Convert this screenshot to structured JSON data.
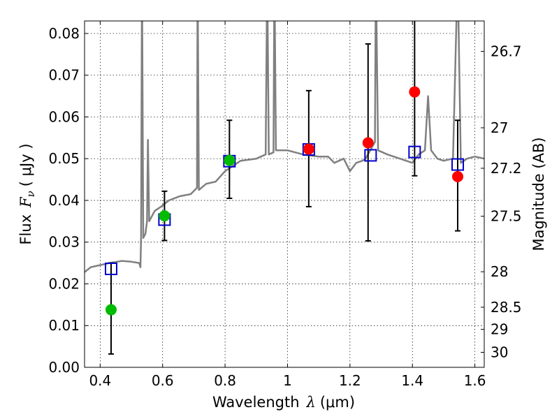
{
  "chart_data": {
    "type": "scatter",
    "xlabel": {
      "text": "Wavelength",
      "symbol": "λ",
      "unit": "(μm)"
    },
    "ylabel": {
      "text": "Flux",
      "symbol": "F",
      "subscript": "ν",
      "unit": "( μJy )"
    },
    "y2label": "Magnitude (AB)",
    "xlim": [
      0.35,
      1.63
    ],
    "ylim": [
      0.0,
      0.083
    ],
    "grid": true,
    "x_ticks": [
      0.4,
      0.6,
      0.8,
      1.0,
      1.2,
      1.4,
      1.6
    ],
    "x_tick_labels": [
      "0.4",
      "0.6",
      "0.8",
      "1",
      "1.2",
      "1.4",
      "1.6"
    ],
    "y_ticks": [
      0.0,
      0.01,
      0.02,
      0.03,
      0.04,
      0.05,
      0.06,
      0.07,
      0.08
    ],
    "y_tick_labels": [
      "0.00",
      "0.01",
      "0.02",
      "0.03",
      "0.04",
      "0.05",
      "0.06",
      "0.07",
      "0.08"
    ],
    "y2_ticks": [
      {
        "label": "26.7",
        "flux": 0.0757
      },
      {
        "label": "27",
        "flux": 0.0574
      },
      {
        "label": "27.2",
        "flux": 0.0477
      },
      {
        "label": "27.5",
        "flux": 0.0362
      },
      {
        "label": "28",
        "flux": 0.0229
      },
      {
        "label": "28.5",
        "flux": 0.0144
      },
      {
        "label": "29",
        "flux": 0.0091
      },
      {
        "label": "30",
        "flux": 0.0036
      }
    ],
    "series": [
      {
        "marker": "circle-filled",
        "color": "#00bb00",
        "points": [
          {
            "x": 0.435,
            "y": 0.0138,
            "err_low": 0.0106,
            "err_high": 0.0112
          },
          {
            "x": 0.606,
            "y": 0.0363,
            "err_low": 0.0059,
            "err_high": 0.0059
          },
          {
            "x": 0.814,
            "y": 0.0496,
            "err_low": 0.0091,
            "err_high": 0.0096
          }
        ]
      },
      {
        "marker": "circle-filled",
        "color": "#ff0000",
        "points": [
          {
            "x": 1.068,
            "y": 0.0523,
            "err_low": 0.0138,
            "err_high": 0.014
          },
          {
            "x": 1.258,
            "y": 0.0538,
            "err_low": 0.0235,
            "err_high": 0.0237
          },
          {
            "x": 1.407,
            "y": 0.066,
            "err_low": 0.0201,
            "err_high": 0.0175
          },
          {
            "x": 1.545,
            "y": 0.0457,
            "err_low": 0.013,
            "err_high": 0.0135
          }
        ]
      },
      {
        "marker": "square-open",
        "color": "#0000cc",
        "points": [
          {
            "x": 0.435,
            "y": 0.0236
          },
          {
            "x": 0.606,
            "y": 0.0354
          },
          {
            "x": 0.814,
            "y": 0.0494
          },
          {
            "x": 1.068,
            "y": 0.0522
          },
          {
            "x": 1.266,
            "y": 0.0508
          },
          {
            "x": 1.407,
            "y": 0.0516
          },
          {
            "x": 1.545,
            "y": 0.0486
          }
        ]
      },
      {
        "marker": "line",
        "color": "#808080",
        "points": [
          [
            0.35,
            0.0228
          ],
          [
            0.37,
            0.024
          ],
          [
            0.4,
            0.0245
          ],
          [
            0.43,
            0.025
          ],
          [
            0.47,
            0.0255
          ],
          [
            0.5,
            0.0253
          ],
          [
            0.525,
            0.025
          ],
          [
            0.529,
            0.024
          ],
          [
            0.531,
            0.031
          ],
          [
            0.534,
            0.095
          ],
          [
            0.538,
            0.031
          ],
          [
            0.545,
            0.032
          ],
          [
            0.55,
            0.035
          ],
          [
            0.553,
            0.0545
          ],
          [
            0.557,
            0.035
          ],
          [
            0.575,
            0.0375
          ],
          [
            0.595,
            0.0385
          ],
          [
            0.62,
            0.04
          ],
          [
            0.655,
            0.041
          ],
          [
            0.69,
            0.0415
          ],
          [
            0.71,
            0.043
          ],
          [
            0.712,
            0.095
          ],
          [
            0.716,
            0.0425
          ],
          [
            0.74,
            0.044
          ],
          [
            0.77,
            0.0445
          ],
          [
            0.8,
            0.047
          ],
          [
            0.82,
            0.048
          ],
          [
            0.85,
            0.0495
          ],
          [
            0.9,
            0.05
          ],
          [
            0.93,
            0.051
          ],
          [
            0.935,
            0.095
          ],
          [
            0.94,
            0.051
          ],
          [
            0.955,
            0.0515
          ],
          [
            0.958,
            0.095
          ],
          [
            0.963,
            0.052
          ],
          [
            1.0,
            0.052
          ],
          [
            1.05,
            0.051
          ],
          [
            1.1,
            0.0505
          ],
          [
            1.13,
            0.0505
          ],
          [
            1.15,
            0.049
          ],
          [
            1.18,
            0.05
          ],
          [
            1.2,
            0.047
          ],
          [
            1.22,
            0.049
          ],
          [
            1.24,
            0.0495
          ],
          [
            1.25,
            0.05
          ],
          [
            1.28,
            0.054
          ],
          [
            1.283,
            0.095
          ],
          [
            1.29,
            0.052
          ],
          [
            1.32,
            0.051
          ],
          [
            1.36,
            0.05
          ],
          [
            1.4,
            0.049
          ],
          [
            1.42,
            0.051
          ],
          [
            1.44,
            0.052
          ],
          [
            1.45,
            0.065
          ],
          [
            1.46,
            0.052
          ],
          [
            1.48,
            0.05
          ],
          [
            1.5,
            0.0495
          ],
          [
            1.53,
            0.05
          ],
          [
            1.545,
            0.095
          ],
          [
            1.555,
            0.049
          ],
          [
            1.575,
            0.05
          ],
          [
            1.6,
            0.0505
          ],
          [
            1.63,
            0.05
          ]
        ]
      }
    ]
  }
}
